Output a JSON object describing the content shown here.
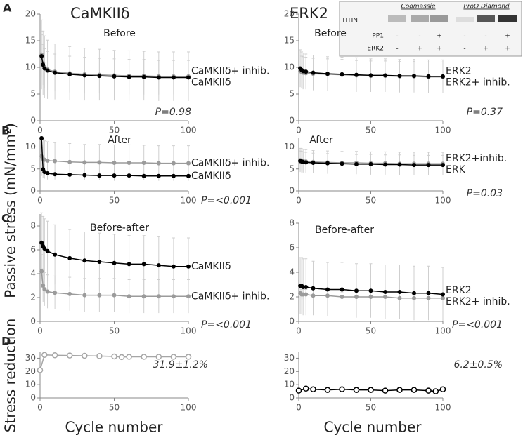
{
  "figure": {
    "panel_labels": [
      "A",
      "B",
      "C",
      "D"
    ],
    "column_titles": [
      "CaMKIIδ",
      "ERK2"
    ],
    "y_labels": [
      "Passive stress (mN/mm²)",
      "Stress reduction"
    ],
    "x_labels": [
      "Cycle number",
      "Cycle number"
    ]
  },
  "blot": {
    "band_label": "TITIN",
    "stains": [
      "Coomassie",
      "ProQ Diamond"
    ],
    "rows": [
      {
        "label": "PP1:",
        "signs": [
          "-",
          "-",
          "+",
          "-",
          "-",
          "+"
        ]
      },
      {
        "label": "ERK2:",
        "signs": [
          "-",
          "+",
          "+",
          "-",
          "+",
          "+"
        ]
      }
    ]
  },
  "chart_data": [
    {
      "type": "line",
      "title": "Before",
      "annotation": "P=0.98",
      "xlim": [
        0,
        100
      ],
      "xticks": [
        0,
        50,
        100
      ],
      "ylim": [
        0,
        20
      ],
      "yticks": [
        0,
        5,
        10,
        15,
        20
      ],
      "errorbar_color": "#cfcfcf",
      "x": [
        1,
        2,
        3,
        5,
        10,
        20,
        30,
        40,
        50,
        60,
        70,
        80,
        90,
        100
      ],
      "series": [
        {
          "name": "CaMKIIδ+ inhib.",
          "color": "#9b9b9b",
          "marker": "filled",
          "values": [
            12.4,
            10.8,
            10.1,
            9.6,
            9.2,
            8.9,
            8.7,
            8.6,
            8.5,
            8.4,
            8.4,
            8.3,
            8.3,
            8.3
          ],
          "errors": [
            6.5,
            6,
            5.8,
            5.5,
            5.2,
            5,
            4.9,
            4.8,
            4.7,
            4.7,
            4.6,
            4.6,
            4.6,
            4.6
          ]
        },
        {
          "name": "CaMKIIδ",
          "color": "#000000",
          "marker": "filled",
          "values": [
            12.1,
            10.5,
            9.8,
            9.4,
            9.0,
            8.7,
            8.5,
            8.4,
            8.3,
            8.2,
            8.2,
            8.1,
            8.1,
            8.1
          ],
          "errors": [
            4,
            3.8,
            3.7,
            3.6,
            3.5,
            3.4,
            3.4,
            3.3,
            3.3,
            3.3,
            3.3,
            3.2,
            3.2,
            3.2
          ]
        }
      ]
    },
    {
      "type": "line",
      "title": "Before",
      "annotation": "P=0.37",
      "xlim": [
        0,
        100
      ],
      "xticks": [
        0,
        50,
        100
      ],
      "ylim": [
        0,
        20
      ],
      "yticks": [
        0,
        5,
        10,
        15,
        20
      ],
      "errorbar_color": "#cfcfcf",
      "x": [
        1,
        2,
        3,
        5,
        10,
        20,
        30,
        40,
        50,
        60,
        70,
        80,
        90,
        100
      ],
      "series": [
        {
          "name": "ERK2+ inhib.",
          "color": "#9b9b9b",
          "marker": "filled",
          "values": [
            9.3,
            9.1,
            9.0,
            8.9,
            8.8,
            8.7,
            8.6,
            8.5,
            8.4,
            8.4,
            8.3,
            8.3,
            8.2,
            8.2
          ],
          "errors": [
            3,
            3,
            3,
            3,
            2.9,
            2.9,
            2.9,
            2.8,
            2.8,
            2.8,
            2.8,
            2.8,
            2.8,
            2.8
          ]
        },
        {
          "name": "ERK2",
          "color": "#000000",
          "marker": "filled",
          "values": [
            9.8,
            9.5,
            9.3,
            9.2,
            9.0,
            8.8,
            8.7,
            8.6,
            8.5,
            8.5,
            8.4,
            8.4,
            8.3,
            8.3
          ],
          "errors": [
            3.5,
            3.4,
            3.4,
            3.3,
            3.3,
            3.2,
            3.2,
            3.2,
            3.1,
            3.1,
            3.1,
            3.1,
            3.1,
            3.1
          ]
        }
      ]
    },
    {
      "type": "line",
      "title": "After",
      "annotation": "P=<0.001",
      "xlim": [
        0,
        100
      ],
      "xticks": [
        0,
        50,
        100
      ],
      "ylim": [
        0,
        12
      ],
      "yticks": [
        0,
        5,
        10
      ],
      "errorbar_color": "#cfcfcf",
      "x": [
        1,
        2,
        3,
        5,
        10,
        20,
        30,
        40,
        50,
        60,
        70,
        80,
        90,
        100
      ],
      "series": [
        {
          "name": "CaMKIIδ+ inhib.",
          "color": "#9b9b9b",
          "marker": "filled",
          "values": [
            7.9,
            7.3,
            7.1,
            6.9,
            6.8,
            6.6,
            6.5,
            6.5,
            6.4,
            6.4,
            6.4,
            6.3,
            6.3,
            6.3
          ],
          "errors": [
            4.5,
            4.4,
            4.3,
            4.3,
            4.2,
            4.2,
            4.1,
            4.1,
            4.1,
            4.1,
            4,
            4,
            4,
            4
          ]
        },
        {
          "name": "CaMKIIδ",
          "color": "#000000",
          "marker": "filled",
          "values": [
            12,
            4.9,
            4.3,
            4.0,
            3.8,
            3.7,
            3.6,
            3.5,
            3.5,
            3.5,
            3.4,
            3.4,
            3.4,
            3.4
          ],
          "errors": [
            0.3,
            0.3,
            0.3,
            0.3,
            0.3,
            0.3,
            0.3,
            0.3,
            0.3,
            0.3,
            0.3,
            0.3,
            0.3,
            0.3
          ]
        }
      ]
    },
    {
      "type": "line",
      "title": "After",
      "annotation": "P=0.03",
      "xlim": [
        0,
        100
      ],
      "xticks": [
        0,
        50,
        100
      ],
      "ylim": [
        0,
        12
      ],
      "yticks": [
        0,
        5,
        10
      ],
      "errorbar_color": "#cfcfcf",
      "x": [
        1,
        2,
        3,
        5,
        10,
        20,
        30,
        40,
        50,
        60,
        70,
        80,
        90,
        100
      ],
      "series": [
        {
          "name": "ERK2+inhib.",
          "color": "#9b9b9b",
          "marker": "filled",
          "values": [
            7,
            6.9,
            6.8,
            6.7,
            6.6,
            6.5,
            6.4,
            6.4,
            6.3,
            6.3,
            6.2,
            6.2,
            6.2,
            6.2
          ],
          "errors": [
            2.7,
            2.7,
            2.7,
            2.7,
            2.6,
            2.6,
            2.6,
            2.6,
            2.6,
            2.6,
            2.6,
            2.6,
            2.6,
            2.6
          ]
        },
        {
          "name": "ERK",
          "color": "#000000",
          "marker": "filled",
          "values": [
            6.8,
            6.7,
            6.6,
            6.5,
            6.4,
            6.3,
            6.2,
            6.1,
            6.1,
            6.0,
            6.0,
            5.9,
            5.9,
            5.9
          ],
          "errors": [
            2.3,
            2.3,
            2.3,
            2.3,
            2.2,
            2.2,
            2.2,
            2.2,
            2.2,
            2.2,
            2.2,
            2.2,
            2.2,
            2.2
          ]
        }
      ]
    },
    {
      "type": "line",
      "title": "Before-after",
      "annotation": "P=<0.001",
      "xlim": [
        0,
        100
      ],
      "xticks": [
        0,
        50,
        100
      ],
      "ylim": [
        0,
        9
      ],
      "yticks": [
        0,
        2,
        4,
        6,
        8
      ],
      "errorbar_color": "#cfcfcf",
      "x": [
        1,
        2,
        3,
        5,
        10,
        20,
        30,
        40,
        50,
        60,
        70,
        80,
        90,
        100
      ],
      "series": [
        {
          "name": "CaMKIIδ+ inhib.",
          "color": "#9b9b9b",
          "marker": "filled",
          "values": [
            4.2,
            3.0,
            2.7,
            2.5,
            2.4,
            2.3,
            2.2,
            2.2,
            2.2,
            2.1,
            2.1,
            2.1,
            2.1,
            2.1
          ],
          "errors": [
            1.4,
            1.4,
            1.4,
            1.4,
            1.4,
            1.4,
            1.4,
            1.4,
            1.4,
            1.4,
            1.4,
            1.4,
            1.4,
            1.4
          ]
        },
        {
          "name": "CaMKIIδ",
          "color": "#000000",
          "marker": "filled",
          "values": [
            6.6,
            6.3,
            6.1,
            5.9,
            5.6,
            5.3,
            5.1,
            5.0,
            4.9,
            4.8,
            4.8,
            4.7,
            4.6,
            4.6
          ],
          "errors": [
            2.5,
            2.5,
            2.5,
            2.5,
            2.5,
            2.4,
            2.4,
            2.4,
            2.4,
            2.4,
            2.4,
            2.4,
            2.4,
            2.4
          ]
        }
      ]
    },
    {
      "type": "line",
      "title": "Before-after",
      "annotation": "P=<0.001",
      "xlim": [
        0,
        100
      ],
      "xticks": [
        0,
        50,
        100
      ],
      "ylim": [
        0,
        8
      ],
      "yticks": [
        0,
        2,
        4,
        6,
        8
      ],
      "errorbar_color": "#cfcfcf",
      "x": [
        1,
        2,
        3,
        5,
        10,
        20,
        30,
        40,
        50,
        60,
        70,
        80,
        90,
        100
      ],
      "series": [
        {
          "name": "ERK2+ inhib.",
          "color": "#9b9b9b",
          "marker": "filled",
          "values": [
            2.3,
            2.2,
            2.2,
            2.2,
            2.1,
            2.1,
            2.0,
            2.0,
            2.0,
            2.0,
            1.9,
            1.9,
            1.9,
            1.9
          ],
          "errors": [
            0.4,
            0.4,
            0.4,
            0.4,
            0.4,
            0.4,
            0.4,
            0.4,
            0.4,
            0.4,
            0.4,
            0.4,
            0.4,
            0.4
          ]
        },
        {
          "name": "ERK2",
          "color": "#000000",
          "marker": "filled",
          "values": [
            2.9,
            2.9,
            2.8,
            2.8,
            2.7,
            2.6,
            2.6,
            2.5,
            2.5,
            2.4,
            2.4,
            2.3,
            2.3,
            2.2
          ],
          "errors": [
            2.3,
            2.3,
            2.3,
            2.3,
            2.2,
            2.2,
            2.2,
            2.2,
            2.2,
            2.2,
            2.2,
            2.2,
            2.2,
            2.2
          ]
        }
      ]
    },
    {
      "type": "line",
      "annotation": "31.9±1.2%",
      "xlim": [
        0,
        100
      ],
      "xticks": [
        0,
        50,
        100
      ],
      "ylim": [
        0,
        35
      ],
      "yticks": [
        0,
        10,
        20,
        30
      ],
      "x": [
        0,
        3,
        10,
        20,
        30,
        40,
        50,
        55,
        60,
        70,
        80,
        90,
        100
      ],
      "series": [
        {
          "color": "#a6a6a6",
          "marker": "open",
          "values": [
            21,
            32.5,
            32.2,
            32,
            31.8,
            31.6,
            31.3,
            30.8,
            31,
            31,
            31,
            31,
            31
          ]
        }
      ]
    },
    {
      "type": "line",
      "annotation": "6.2±0.5%",
      "xlim": [
        0,
        100
      ],
      "xticks": [
        0,
        50,
        100
      ],
      "ylim": [
        0,
        35
      ],
      "yticks": [
        0,
        10,
        20,
        30
      ],
      "x": [
        0,
        5,
        10,
        20,
        30,
        40,
        50,
        60,
        70,
        80,
        90,
        95,
        100
      ],
      "series": [
        {
          "color": "#000000",
          "marker": "open",
          "values": [
            5.5,
            7,
            6.5,
            6,
            6.5,
            6,
            6,
            5.5,
            6,
            6,
            5.5,
            5,
            6.5
          ]
        }
      ]
    }
  ]
}
